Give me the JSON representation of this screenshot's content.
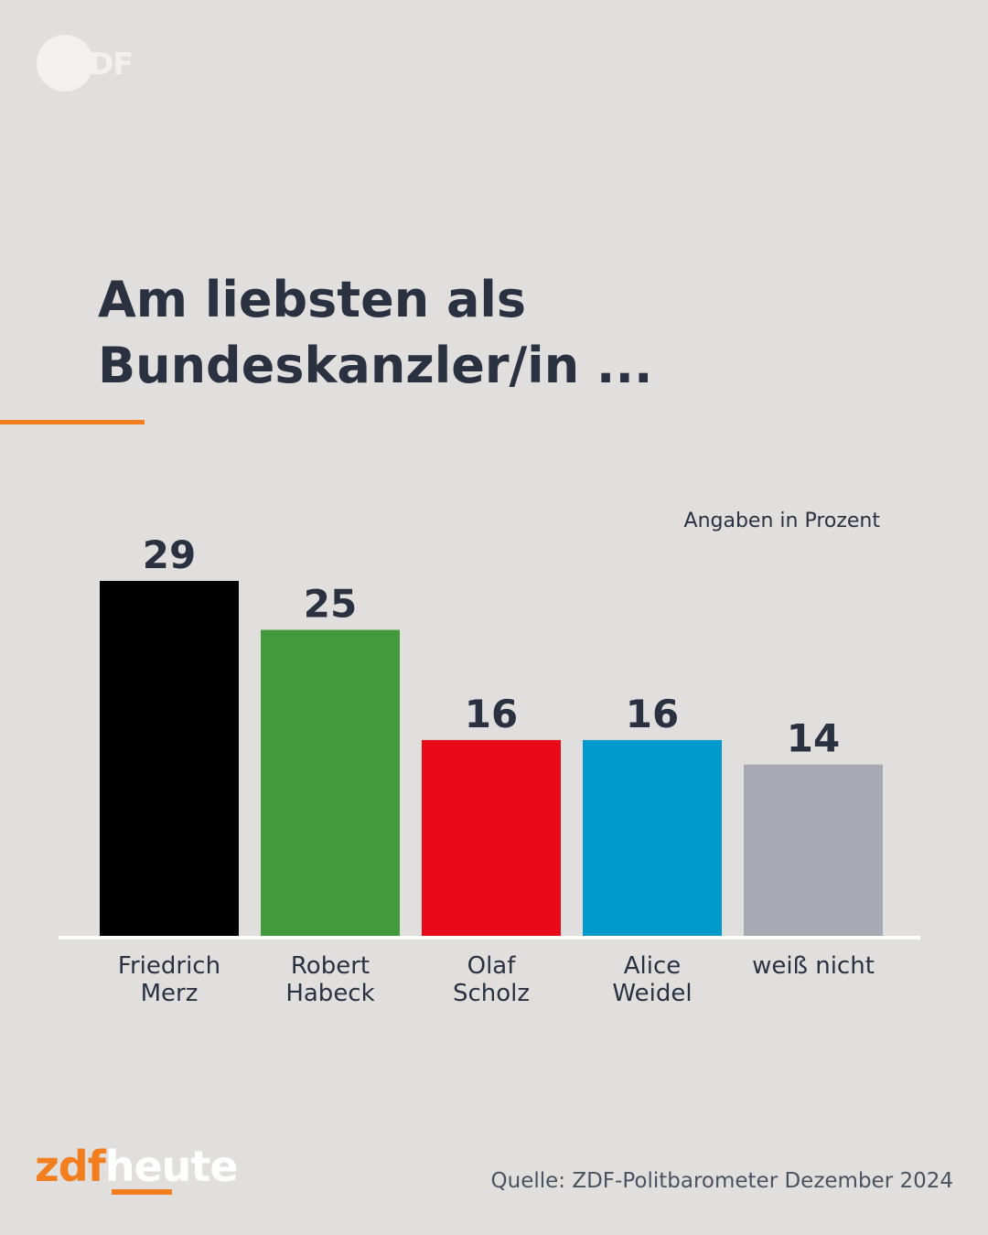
{
  "logo": {
    "text": "ZDF"
  },
  "title": {
    "line1": "Am liebsten als",
    "line2": "Bundeskanzler/in ..."
  },
  "unit_note": "Angaben in Prozent",
  "brand": {
    "part1": "zdf",
    "part2": "heute"
  },
  "source": "Quelle: ZDF-Politbarometer Dezember 2024",
  "colors": {
    "background": "#e1dfdd",
    "accent": "#f27e1e",
    "text": "#2a3140"
  },
  "chart_data": {
    "type": "bar",
    "title": "Am liebsten als Bundeskanzler/in ...",
    "categories": [
      [
        "Friedrich",
        "Merz"
      ],
      [
        "Robert",
        "Habeck"
      ],
      [
        "Olaf",
        "Scholz"
      ],
      [
        "Alice",
        "Weidel"
      ],
      [
        "weiß nicht"
      ]
    ],
    "values": [
      29,
      25,
      16,
      16,
      14
    ],
    "colors": [
      "#000000",
      "#429a3c",
      "#e80a18",
      "#009acd",
      "#a7aab2"
    ],
    "unit": "Angaben in Prozent",
    "ylim": [
      0,
      29
    ],
    "grid": false,
    "legend": "none"
  }
}
